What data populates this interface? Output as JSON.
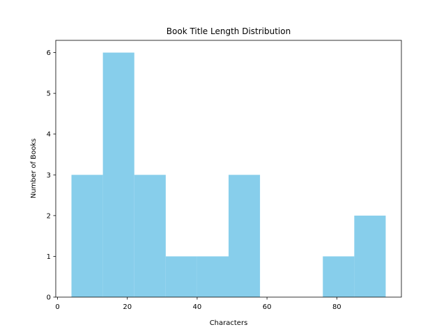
{
  "chart_data": {
    "type": "bar",
    "title": "Book Title Length Distribution",
    "xlabel": "Characters",
    "ylabel": "Number of Books",
    "xlim": [
      -0.5,
      98.5
    ],
    "ylim": [
      0,
      6.3
    ],
    "xticks": [
      0,
      20,
      40,
      60,
      80
    ],
    "yticks": [
      0,
      1,
      2,
      3,
      4,
      5,
      6
    ],
    "bin_edges": [
      4,
      13,
      22,
      31,
      40,
      49,
      58,
      67,
      76,
      85,
      94
    ],
    "counts": [
      3,
      6,
      3,
      1,
      1,
      3,
      0,
      0,
      1,
      2
    ],
    "bar_color": "#87ceeb",
    "grid": false,
    "legend": "none"
  }
}
